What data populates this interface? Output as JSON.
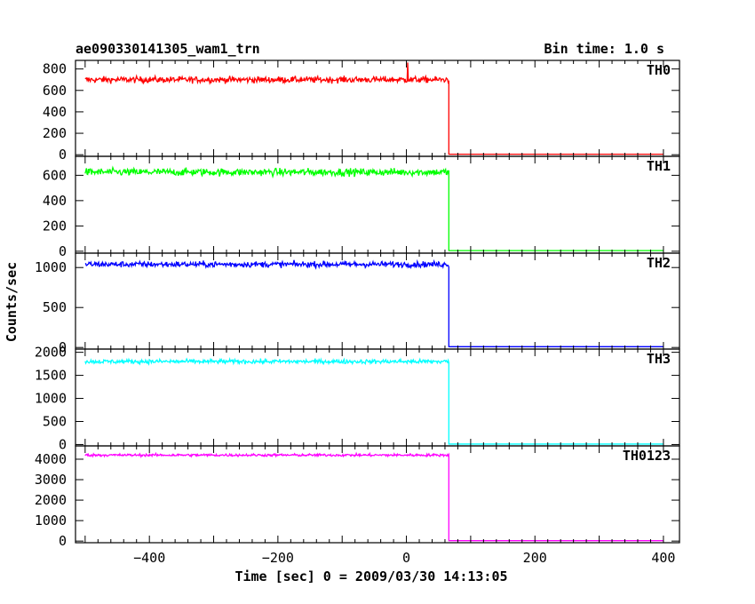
{
  "chart_data": {
    "type": "line",
    "title": "ae090330141305_wam1_trn",
    "subtitle": "Bin time: 1.0 s",
    "xlabel": "Time [sec] 0 = 2009/03/30 14:13:05",
    "ylabel": "Counts/sec",
    "xlim": [
      -515,
      425
    ],
    "x_ticks": [
      -400,
      -200,
      0,
      200,
      400
    ],
    "grid": false,
    "step_time": 66,
    "x_start": -500,
    "x_end": 400,
    "panels": [
      {
        "name": "TH0",
        "color": "#ff0000",
        "ylim": [
          -15,
          880
        ],
        "y_ticks": [
          0,
          200,
          400,
          600,
          800
        ],
        "before_level": 700,
        "noise": 28,
        "after_level": 5,
        "spike": {
          "x": 2,
          "y": 860
        }
      },
      {
        "name": "TH1",
        "color": "#00ff00",
        "ylim": [
          -15,
          750
        ],
        "y_ticks": [
          0,
          200,
          400,
          600
        ],
        "before_level": 625,
        "noise": 28,
        "after_level": 5
      },
      {
        "name": "TH2",
        "color": "#0000ff",
        "ylim": [
          -20,
          1180
        ],
        "y_ticks": [
          0,
          500,
          1000
        ],
        "before_level": 1040,
        "noise": 35,
        "after_level": 10
      },
      {
        "name": "TH3",
        "color": "#00ffff",
        "ylim": [
          -30,
          2070
        ],
        "y_ticks": [
          0,
          500,
          1000,
          1500,
          2000
        ],
        "before_level": 1800,
        "noise": 45,
        "after_level": 10
      },
      {
        "name": "TH0123",
        "color": "#ff00ff",
        "ylim": [
          -80,
          4650
        ],
        "y_ticks": [
          0,
          1000,
          2000,
          3000,
          4000
        ],
        "before_level": 4200,
        "noise": 60,
        "after_level": 20
      }
    ]
  }
}
